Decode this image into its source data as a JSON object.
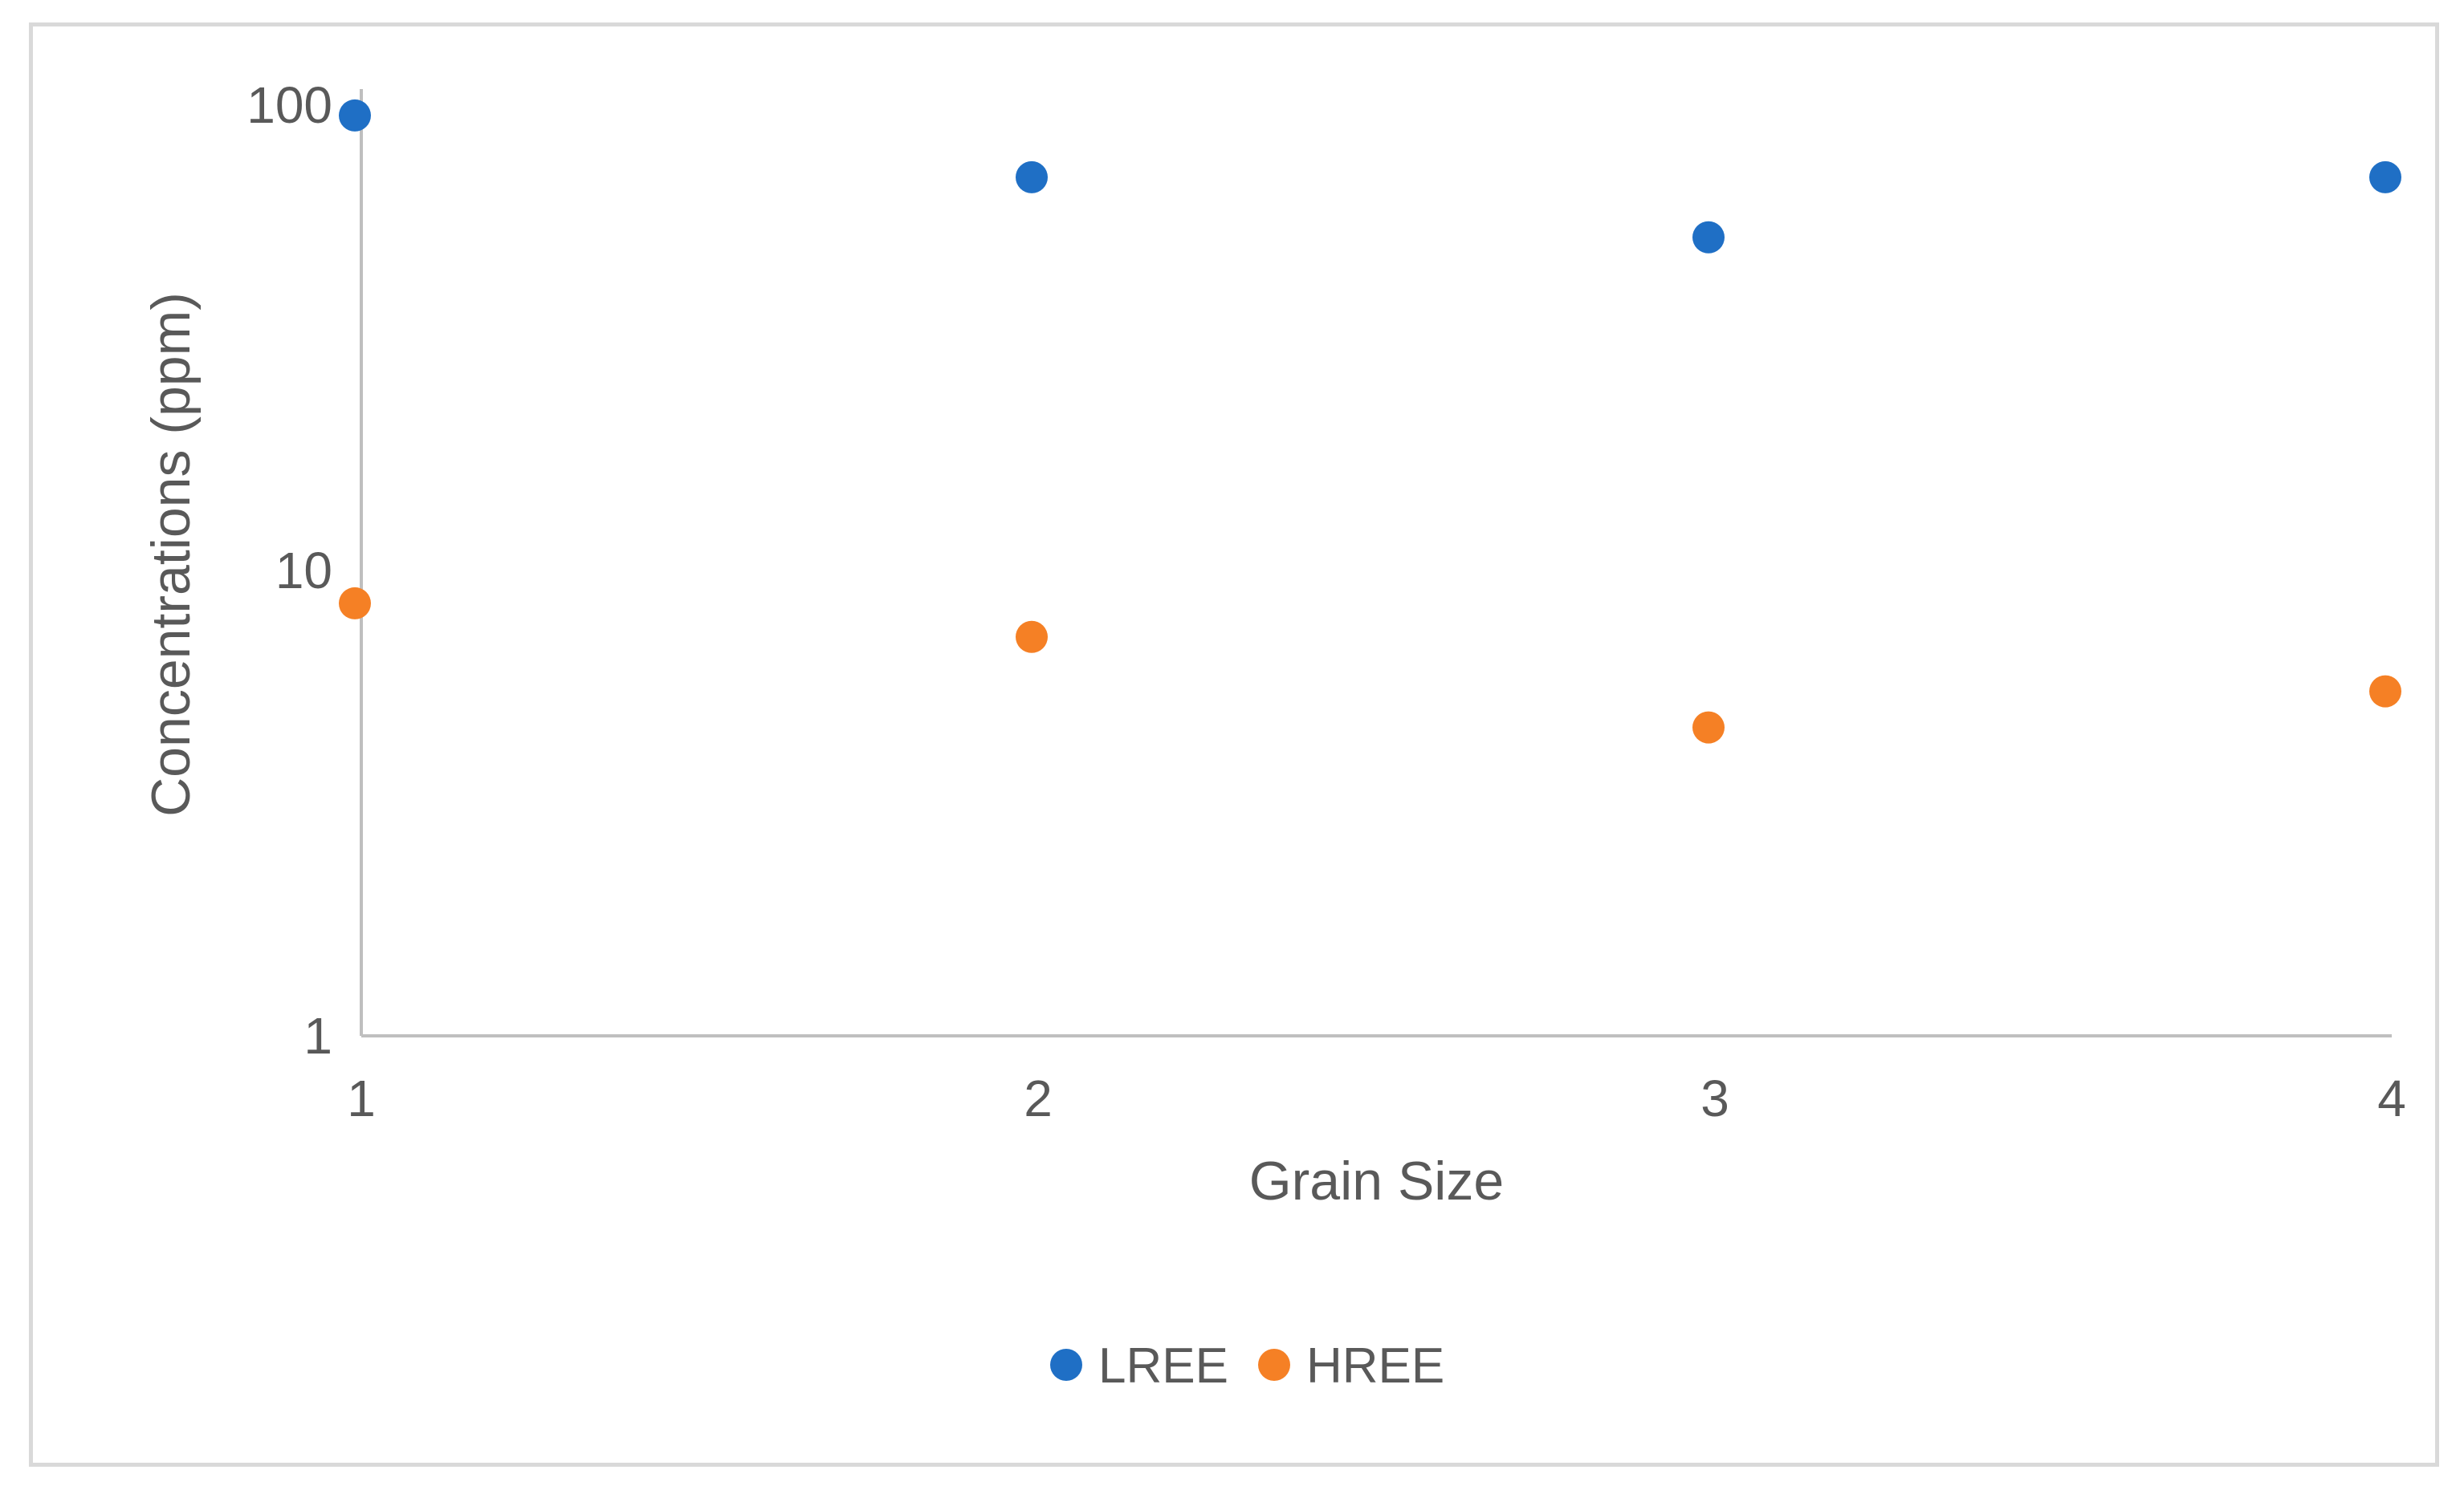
{
  "chart_data": {
    "type": "scatter",
    "title": "",
    "xlabel": "Grain Size",
    "ylabel": "Concentrations (ppm)",
    "x_ticks": [
      "1",
      "2",
      "3",
      "4"
    ],
    "y_ticks": [
      "1",
      "10",
      "100"
    ],
    "xlim": [
      1,
      4
    ],
    "ylim": [
      1,
      100
    ],
    "y_scale": "log",
    "grid": false,
    "legend_position": "bottom",
    "series": [
      {
        "name": "LREE",
        "color": "#1f6fc5",
        "points": [
          {
            "x": 1,
            "y": 95
          },
          {
            "x": 2,
            "y": 70
          },
          {
            "x": 3,
            "y": 52
          },
          {
            "x": 4,
            "y": 70
          }
        ]
      },
      {
        "name": "HREE",
        "color": "#f58025",
        "points": [
          {
            "x": 1,
            "y": 8.5
          },
          {
            "x": 2,
            "y": 7.2
          },
          {
            "x": 3,
            "y": 4.6
          },
          {
            "x": 4,
            "y": 5.5
          }
        ]
      }
    ]
  }
}
